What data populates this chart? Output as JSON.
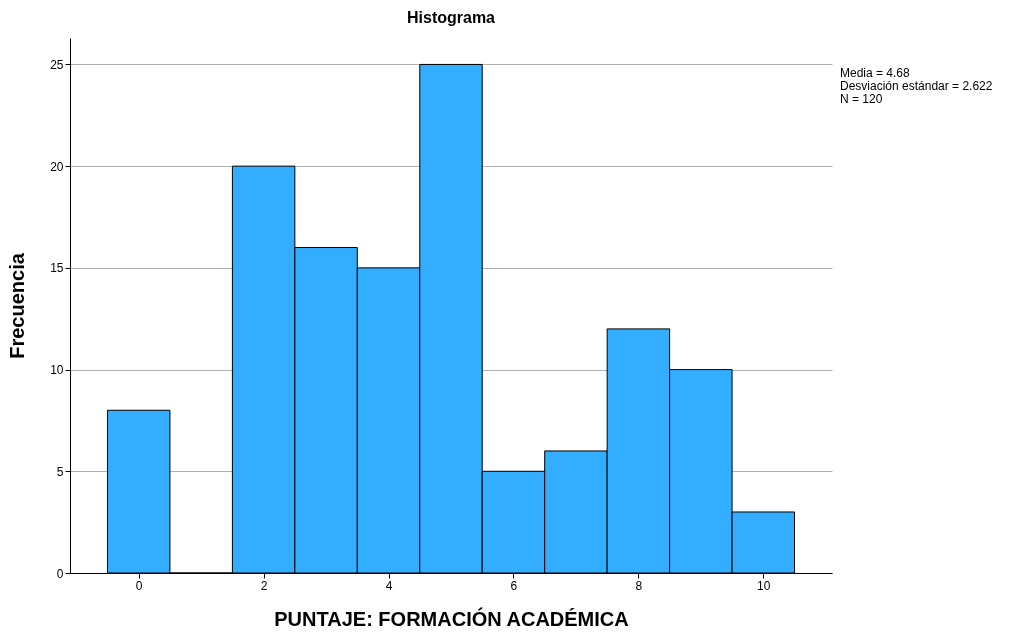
{
  "chart_data": {
    "type": "histogram",
    "title": "Histograma",
    "xlabel": "PUNTAJE: FORMACIÓN ACADÉMICA",
    "ylabel": "Frecuencia",
    "bins": [
      -0.5,
      0.5,
      1.5,
      2.5,
      3.5,
      4.5,
      5.5,
      6.5,
      7.5,
      8.5,
      9.5,
      10.5
    ],
    "values": [
      8,
      0,
      20,
      16,
      15,
      25,
      5,
      6,
      12,
      10,
      3
    ],
    "color": "#33adff",
    "xlim": [
      -1.1,
      11.1
    ],
    "xticks": [
      0,
      2,
      4,
      6,
      8,
      10
    ],
    "ylim": [
      0,
      26.3
    ],
    "yticks": [
      0,
      5,
      10,
      15,
      20,
      25
    ],
    "grid": "y",
    "annotations": [
      "Media = 4.68",
      "Desviación estándar = 2.622",
      "N = 120"
    ]
  }
}
